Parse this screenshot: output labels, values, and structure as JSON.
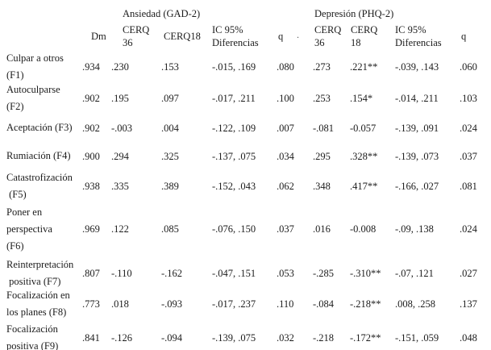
{
  "colors": {
    "background": "#ffffff",
    "text": "#1c1c1c"
  },
  "table": {
    "group_headers": {
      "ansiedad": "Ansiedad (GAD-2)",
      "depresion": "Depresión (PHQ-2)"
    },
    "columns": {
      "dm": "Dm",
      "ans_cerq36": "CERQ\n36",
      "ans_cerq18": "CERQ18",
      "ans_ic": "IC 95%\nDiferencias",
      "ans_q": "q",
      "dep_cerq36": "CERQ\n36",
      "dep_cerq18": "CERQ\n18",
      "dep_ic": "IC 95%\nDiferencias",
      "dep_q": "q"
    },
    "stray_mark": ".",
    "rows": [
      {
        "label": "Culpar a otros\n(F1)",
        "dm": ".934",
        "a36": ".230",
        "a18": ".153",
        "aic": "-.015, .169",
        "aq": ".080",
        "d36": ".273",
        "d18": ".221**",
        "dic": "-.039, .143",
        "dq": ".060"
      },
      {
        "label": "Autoculparse\n(F2)",
        "dm": ".902",
        "a36": ".195",
        "a18": ".097",
        "aic": "-.017, .211",
        "aq": ".100",
        "d36": ".253",
        "d18": ".154*",
        "dic": "-.014, .211",
        "dq": ".103"
      },
      {
        "label": "Aceptación (F3)",
        "dm": ".902",
        "a36": "-.003",
        "a18": ".004",
        "aic": "-.122, .109",
        "aq": ".007",
        "d36": "-.081",
        "d18": "-0.057",
        "dic": "-.139, .091",
        "dq": ".024"
      },
      {
        "label": "Rumiación (F4)",
        "dm": ".900",
        "a36": ".294",
        "a18": ".325",
        "aic": "-.137, .075",
        "aq": ".034",
        "d36": ".295",
        "d18": ".328**",
        "dic": "-.139, .073",
        "dq": ".037"
      },
      {
        "label": "Catastrofización\n (F5)",
        "dm": ".938",
        "a36": ".335",
        "a18": ".389",
        "aic": "-.152, .043",
        "aq": ".062",
        "d36": ".348",
        "d18": ".417**",
        "dic": "-.166, .027",
        "dq": ".081"
      },
      {
        "label": "Poner en\nperspectiva\n(F6)",
        "dm": ".969",
        "a36": ".122",
        "a18": ".085",
        "aic": "-.076, .150",
        "aq": ".037",
        "d36": ".016",
        "d18": "-0.008",
        "dic": "-.09, .138",
        "dq": ".024"
      },
      {
        "label": "Reinterpretación\n positiva (F7)",
        "dm": ".807",
        "a36": "-.110",
        "a18": "-.162",
        "aic": "-.047, .151",
        "aq": ".053",
        "d36": "-.285",
        "d18": "-.310**",
        "dic": "-.07, .121",
        "dq": ".027"
      },
      {
        "label": "Focalización en\nlos planes (F8)",
        "dm": ".773",
        "a36": ".018",
        "a18": "-.093",
        "aic": "-.017, .237",
        "aq": ".110",
        "d36": "-.084",
        "d18": "-.218**",
        "dic": ".008, .258",
        "dq": ".137"
      },
      {
        "label": "Focalización\npositiva (F9)",
        "dm": ".841",
        "a36": "-.126",
        "a18": "-.094",
        "aic": "-.139, .075",
        "aq": ".032",
        "d36": "-.218",
        "d18": "-.172**",
        "dic": "-.151, .059",
        "dq": ".048"
      }
    ]
  }
}
